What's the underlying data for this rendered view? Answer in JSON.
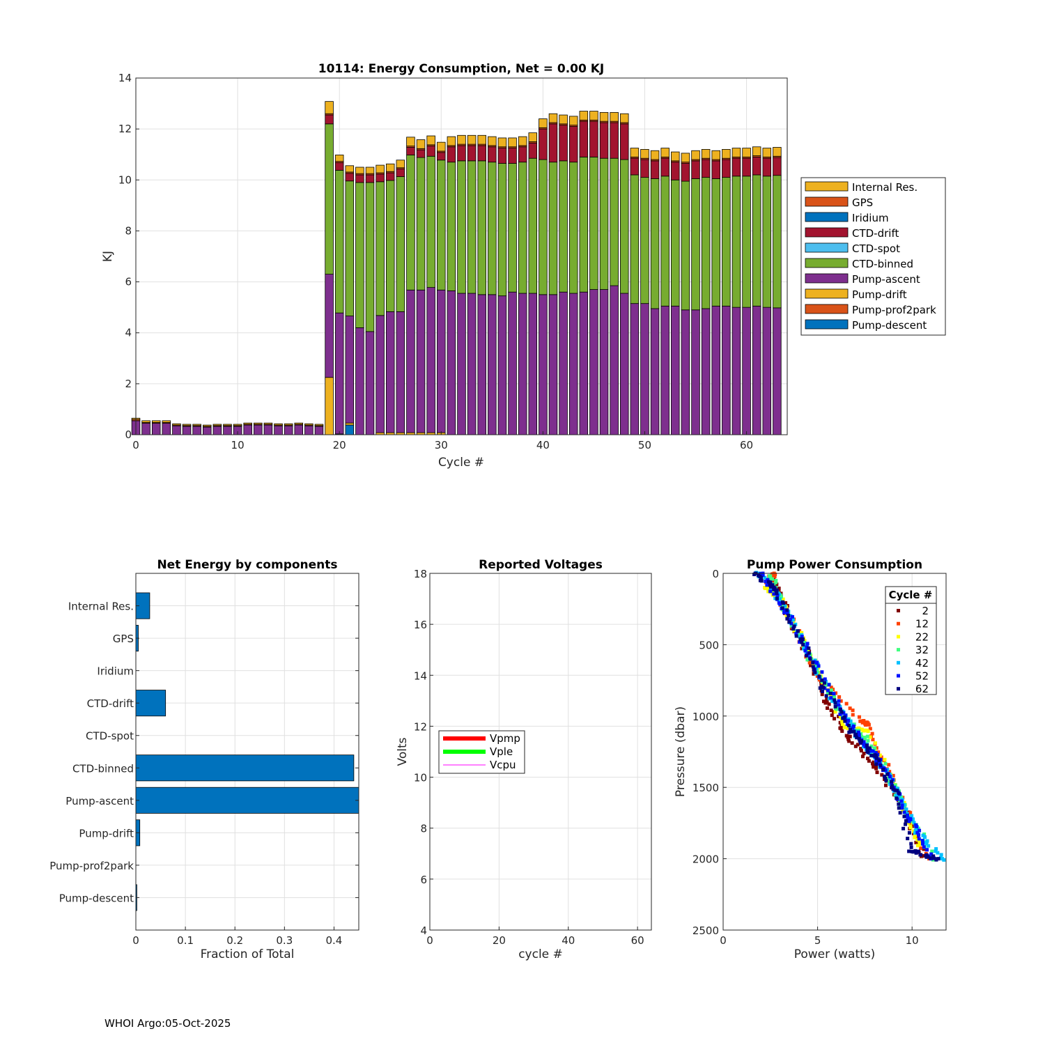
{
  "footer": "WHOI Argo:05-Oct-2025",
  "components": [
    "Internal Res.",
    "GPS",
    "Iridium",
    "CTD-drift",
    "CTD-spot",
    "CTD-binned",
    "Pump-ascent",
    "Pump-drift",
    "Pump-prof2park",
    "Pump-descent"
  ],
  "colors": {
    "Internal Res.": "#EDB120",
    "GPS": "#D95319",
    "Iridium": "#0072BD",
    "CTD-drift": "#A2142F",
    "CTD-spot": "#4DBEEE",
    "CTD-binned": "#77AC30",
    "Pump-ascent": "#7E2F8E",
    "Pump-drift": "#EDB120",
    "Pump-prof2park": "#D95319",
    "Pump-descent": "#0072BD"
  },
  "chart_data": [
    {
      "type": "bar",
      "stacked": true,
      "title": "10114: Energy Consumption,  Net =   0.00 KJ",
      "xlabel": "Cycle #",
      "ylabel": "KJ",
      "xlim": [
        0,
        64
      ],
      "ylim": [
        0,
        14
      ],
      "xticks": [
        0,
        10,
        20,
        30,
        40,
        50,
        60
      ],
      "yticks": [
        0,
        2,
        4,
        6,
        8,
        10,
        12,
        14
      ],
      "grid": true,
      "legend": "outside-right",
      "x": [
        0,
        1,
        2,
        3,
        4,
        5,
        6,
        7,
        8,
        9,
        10,
        11,
        12,
        13,
        14,
        15,
        16,
        17,
        18,
        19,
        20,
        21,
        22,
        23,
        24,
        25,
        26,
        27,
        28,
        29,
        30,
        31,
        32,
        33,
        34,
        35,
        36,
        37,
        38,
        39,
        40,
        41,
        42,
        43,
        44,
        45,
        46,
        47,
        48,
        49,
        50,
        51,
        52,
        53,
        54,
        55,
        56,
        57,
        58,
        59,
        60,
        61,
        62,
        63
      ],
      "series": [
        {
          "name": "Pump-descent",
          "values": [
            0,
            0,
            0,
            0,
            0,
            0,
            0,
            0,
            0,
            0,
            0,
            0,
            0,
            0,
            0,
            0,
            0,
            0,
            0,
            0,
            0.03,
            0.38,
            0,
            0,
            0,
            0,
            0,
            0,
            0,
            0,
            0,
            0,
            0,
            0,
            0,
            0,
            0,
            0,
            0,
            0,
            0,
            0,
            0,
            0,
            0,
            0,
            0,
            0,
            0,
            0,
            0,
            0,
            0,
            0,
            0,
            0,
            0,
            0,
            0,
            0,
            0,
            0,
            0,
            0
          ]
        },
        {
          "name": "Pump-prof2park",
          "values": [
            0,
            0,
            0,
            0,
            0,
            0,
            0,
            0,
            0,
            0,
            0,
            0,
            0,
            0,
            0,
            0,
            0,
            0,
            0,
            0,
            0,
            0,
            0,
            0,
            0,
            0,
            0,
            0,
            0,
            0,
            0,
            0,
            0,
            0,
            0,
            0,
            0,
            0,
            0,
            0,
            0,
            0,
            0,
            0,
            0,
            0,
            0,
            0,
            0,
            0,
            0,
            0,
            0,
            0,
            0,
            0,
            0,
            0,
            0,
            0,
            0,
            0,
            0,
            0
          ]
        },
        {
          "name": "Pump-drift",
          "values": [
            0,
            0,
            0,
            0,
            0,
            0,
            0,
            0,
            0,
            0,
            0,
            0,
            0,
            0,
            0,
            0,
            0,
            0,
            0,
            2.25,
            0,
            0.08,
            0,
            0,
            0.08,
            0.08,
            0.08,
            0.08,
            0.08,
            0.08,
            0.08,
            0,
            0,
            0,
            0,
            0,
            0,
            0,
            0,
            0,
            0,
            0,
            0,
            0,
            0,
            0,
            0,
            0,
            0,
            0,
            0,
            0,
            0,
            0,
            0,
            0,
            0,
            0,
            0,
            0,
            0,
            0,
            0,
            0
          ]
        },
        {
          "name": "Pump-ascent",
          "values": [
            0.55,
            0.45,
            0.45,
            0.45,
            0.35,
            0.33,
            0.33,
            0.3,
            0.33,
            0.33,
            0.33,
            0.38,
            0.38,
            0.38,
            0.35,
            0.35,
            0.38,
            0.35,
            0.33,
            4.05,
            4.75,
            4.2,
            4.2,
            4.05,
            4.6,
            4.75,
            4.75,
            5.6,
            5.6,
            5.7,
            5.6,
            5.65,
            5.55,
            5.55,
            5.5,
            5.5,
            5.45,
            5.6,
            5.55,
            5.55,
            5.5,
            5.5,
            5.6,
            5.55,
            5.6,
            5.7,
            5.7,
            5.85,
            5.55,
            5.15,
            5.15,
            4.95,
            5.05,
            5.05,
            4.9,
            4.9,
            4.95,
            5.05,
            5.05,
            5.0,
            5.0,
            5.05,
            5.0,
            4.98
          ]
        },
        {
          "name": "CTD-binned",
          "values": [
            0,
            0,
            0,
            0,
            0,
            0,
            0,
            0,
            0,
            0,
            0,
            0,
            0,
            0,
            0,
            0,
            0,
            0,
            0,
            5.9,
            5.6,
            5.3,
            5.7,
            5.85,
            5.25,
            5.15,
            5.3,
            5.3,
            5.2,
            5.15,
            5.1,
            5.05,
            5.2,
            5.2,
            5.25,
            5.2,
            5.2,
            5.05,
            5.15,
            5.3,
            5.3,
            5.2,
            5.15,
            5.15,
            5.3,
            5.2,
            5.15,
            5.0,
            5.25,
            5.05,
            4.95,
            5.1,
            5.1,
            4.95,
            5.05,
            5.15,
            5.15,
            5.0,
            5.05,
            5.15,
            5.15,
            5.15,
            5.15,
            5.2
          ]
        },
        {
          "name": "CTD-spot",
          "values": [
            0,
            0,
            0,
            0,
            0,
            0,
            0,
            0,
            0,
            0,
            0,
            0,
            0,
            0,
            0,
            0,
            0,
            0,
            0,
            0,
            0,
            0,
            0,
            0,
            0,
            0,
            0,
            0,
            0,
            0,
            0,
            0,
            0,
            0,
            0,
            0,
            0,
            0,
            0,
            0,
            0,
            0,
            0,
            0,
            0,
            0,
            0,
            0,
            0,
            0,
            0,
            0,
            0,
            0,
            0,
            0,
            0,
            0,
            0,
            0,
            0,
            0,
            0,
            0
          ]
        },
        {
          "name": "CTD-drift",
          "values": [
            0,
            0,
            0,
            0,
            0,
            0,
            0,
            0,
            0,
            0,
            0,
            0,
            0,
            0,
            0,
            0,
            0,
            0,
            0,
            0.35,
            0.3,
            0.3,
            0.3,
            0.3,
            0.3,
            0.3,
            0.3,
            0.3,
            0.3,
            0.4,
            0.3,
            0.6,
            0.6,
            0.6,
            0.6,
            0.6,
            0.6,
            0.6,
            0.6,
            0.6,
            1.2,
            1.5,
            1.4,
            1.4,
            1.4,
            1.4,
            1.4,
            1.4,
            1.4,
            0.65,
            0.7,
            0.7,
            0.7,
            0.7,
            0.7,
            0.7,
            0.7,
            0.7,
            0.7,
            0.7,
            0.7,
            0.7,
            0.7,
            0.7
          ]
        },
        {
          "name": "Iridium",
          "values": [
            0,
            0,
            0,
            0,
            0,
            0,
            0,
            0,
            0,
            0,
            0,
            0,
            0,
            0,
            0,
            0,
            0,
            0,
            0,
            0,
            0,
            0,
            0,
            0,
            0,
            0,
            0,
            0,
            0,
            0,
            0,
            0,
            0,
            0,
            0,
            0,
            0,
            0,
            0,
            0,
            0,
            0,
            0,
            0,
            0,
            0,
            0,
            0,
            0,
            0,
            0,
            0,
            0,
            0,
            0,
            0,
            0,
            0,
            0,
            0,
            0,
            0,
            0,
            0
          ]
        },
        {
          "name": "GPS",
          "values": [
            0.05,
            0.03,
            0.03,
            0.03,
            0.03,
            0.03,
            0.03,
            0.03,
            0.03,
            0.03,
            0.03,
            0.03,
            0.03,
            0.03,
            0.03,
            0.03,
            0.03,
            0.03,
            0.03,
            0.05,
            0.05,
            0.05,
            0.05,
            0.05,
            0.05,
            0.05,
            0.05,
            0.05,
            0.05,
            0.05,
            0.05,
            0.05,
            0.05,
            0.05,
            0.05,
            0.05,
            0.05,
            0.05,
            0.05,
            0.05,
            0.05,
            0.05,
            0.05,
            0.05,
            0.05,
            0.05,
            0.05,
            0.05,
            0.05,
            0.05,
            0.05,
            0.05,
            0.05,
            0.05,
            0.05,
            0.05,
            0.05,
            0.05,
            0.05,
            0.05,
            0.05,
            0.05,
            0.05,
            0.05
          ]
        },
        {
          "name": "Internal Res.",
          "values": [
            0.05,
            0.07,
            0.07,
            0.07,
            0.05,
            0.05,
            0.05,
            0.05,
            0.05,
            0.05,
            0.05,
            0.05,
            0.05,
            0.05,
            0.05,
            0.05,
            0.05,
            0.05,
            0.05,
            0.48,
            0.25,
            0.25,
            0.25,
            0.25,
            0.3,
            0.3,
            0.3,
            0.35,
            0.35,
            0.35,
            0.35,
            0.35,
            0.35,
            0.35,
            0.35,
            0.35,
            0.35,
            0.35,
            0.35,
            0.35,
            0.35,
            0.35,
            0.35,
            0.35,
            0.35,
            0.35,
            0.35,
            0.35,
            0.35,
            0.35,
            0.35,
            0.35,
            0.35,
            0.35,
            0.35,
            0.35,
            0.35,
            0.35,
            0.35,
            0.35,
            0.35,
            0.35,
            0.35,
            0.35
          ]
        }
      ]
    },
    {
      "type": "bar",
      "orientation": "horizontal",
      "title": "Net Energy by components",
      "xlabel": "Fraction of Total",
      "xlim": [
        0,
        0.45
      ],
      "xticks": [
        0,
        0.1,
        0.2,
        0.3,
        0.4
      ],
      "xticklabels": [
        "0",
        "0.1",
        "0.2",
        "0.3",
        "0.4"
      ],
      "grid": true,
      "categories": [
        "Internal Res.",
        "GPS",
        "Iridium",
        "CTD-drift",
        "CTD-spot",
        "CTD-binned",
        "Pump-ascent",
        "Pump-drift",
        "Pump-prof2park",
        "Pump-descent"
      ],
      "values": [
        0.028,
        0.005,
        0,
        0.06,
        0,
        0.44,
        0.46,
        0.008,
        0,
        0.002
      ],
      "color": "#0072BD"
    },
    {
      "type": "line",
      "title": "Reported Voltages",
      "xlabel": "cycle #",
      "ylabel": "Volts",
      "xlim": [
        0,
        64
      ],
      "ylim": [
        4,
        18
      ],
      "xticks": [
        0,
        20,
        40,
        60
      ],
      "yticks": [
        4,
        6,
        8,
        10,
        12,
        14,
        16,
        18
      ],
      "grid": true,
      "legend": "middle-left",
      "series": [
        {
          "name": "Vpmp",
          "color": "#FF0000",
          "values": []
        },
        {
          "name": "Vple",
          "color": "#00FF00",
          "values": []
        },
        {
          "name": "Vcpu",
          "color": "#FF00FF",
          "values": []
        }
      ]
    },
    {
      "type": "scatter",
      "title": "Pump Power Consumption",
      "xlabel": "Power (watts)",
      "ylabel": "Pressure (dbar)",
      "xlim": [
        0,
        11.8
      ],
      "ylim": [
        0,
        2500
      ],
      "y_reversed": true,
      "xticks": [
        0,
        5,
        10
      ],
      "yticks": [
        0,
        500,
        1000,
        1500,
        2000,
        2500
      ],
      "grid": true,
      "legend_title": "Cycle #",
      "legend": "top-right",
      "series": [
        {
          "name": "2",
          "color": "#800000",
          "points": [
            [
              2.6,
              10
            ],
            [
              3.3,
              250
            ],
            [
              4.4,
              550
            ],
            [
              5.5,
              900
            ],
            [
              6.6,
              1150
            ],
            [
              8.1,
              1350
            ],
            [
              9.6,
              1650
            ],
            [
              10.6,
              1980
            ]
          ]
        },
        {
          "name": "12",
          "color": "#FF4000",
          "points": [
            [
              2.7,
              0
            ],
            [
              2.4,
              60
            ],
            [
              3.6,
              320
            ],
            [
              4.9,
              700
            ],
            [
              7.4,
              1040
            ],
            [
              7.7,
              1060
            ],
            [
              9.0,
              1450
            ],
            [
              10.9,
              2000
            ]
          ]
        },
        {
          "name": "22",
          "color": "#FFFF00",
          "points": [
            [
              2.2,
              100
            ],
            [
              2.9,
              150
            ],
            [
              4.0,
              420
            ],
            [
              5.7,
              850
            ],
            [
              6.5,
              1080
            ],
            [
              7.6,
              1100
            ],
            [
              9.8,
              1700
            ],
            [
              10.4,
              1900
            ]
          ]
        },
        {
          "name": "32",
          "color": "#40FF80",
          "points": [
            [
              2.5,
              20
            ],
            [
              3.1,
              200
            ],
            [
              4.6,
              600
            ],
            [
              6.1,
              950
            ],
            [
              7.5,
              1150
            ],
            [
              8.8,
              1420
            ],
            [
              9.5,
              1620
            ],
            [
              11.2,
              2000
            ]
          ]
        },
        {
          "name": "42",
          "color": "#00C0FF",
          "points": [
            [
              1.9,
              0
            ],
            [
              3.0,
              180
            ],
            [
              4.3,
              500
            ],
            [
              5.9,
              900
            ],
            [
              7.0,
              1120
            ],
            [
              8.4,
              1350
            ],
            [
              9.3,
              1560
            ],
            [
              10.2,
              1800
            ],
            [
              11.6,
              2000
            ]
          ]
        },
        {
          "name": "52",
          "color": "#0010FF",
          "points": [
            [
              2.1,
              0
            ],
            [
              3.4,
              280
            ],
            [
              4.8,
              620
            ],
            [
              6.3,
              980
            ],
            [
              7.8,
              1240
            ],
            [
              8.6,
              1380
            ],
            [
              9.9,
              1720
            ],
            [
              11.0,
              2000
            ]
          ]
        },
        {
          "name": "62",
          "color": "#000080",
          "points": [
            [
              1.7,
              0
            ],
            [
              2.8,
              120
            ],
            [
              4.1,
              460
            ],
            [
              5.3,
              800
            ],
            [
              6.8,
              1110
            ],
            [
              8.0,
              1280
            ],
            [
              9.1,
              1520
            ],
            [
              10.0,
              1950
            ],
            [
              11.4,
              2000
            ]
          ]
        }
      ]
    }
  ]
}
